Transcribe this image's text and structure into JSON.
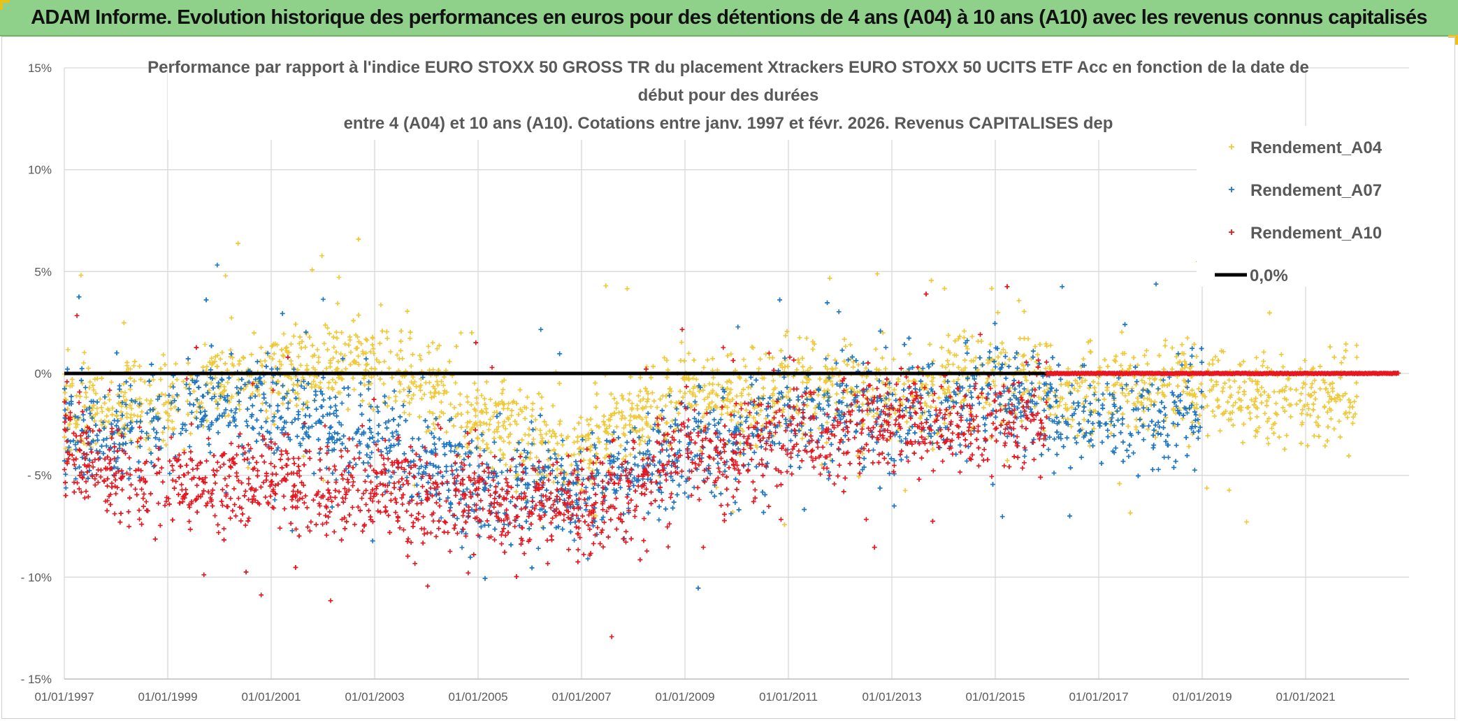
{
  "header": {
    "banner": "ADAM Informe. Evolution historique des performances en euros pour des détentions de 4 ans (A04) à 10 ans (A10) avec les revenus connus capitalisés"
  },
  "chart_data": {
    "type": "scatter",
    "title_lines": [
      "Performance par rapport à l'indice EURO STOXX 50 GROSS TR  du placement Xtrackers EURO STOXX 50 UCITS ETF Acc en fonction de la date de",
      "début pour des durées",
      "entre 4 (A04) et 10 ans (A10). Cotations entre janv. 1997 et févr. 2026. Revenus CAPITALISES dep"
    ],
    "ylim": [
      -15,
      15
    ],
    "y_ticks": [
      {
        "value": 15,
        "label": "15%"
      },
      {
        "value": 10,
        "label": "10%"
      },
      {
        "value": 5,
        "label": "5%"
      },
      {
        "value": 0,
        "label": "0%"
      },
      {
        "value": -5,
        "label": "- 5%"
      },
      {
        "value": -10,
        "label": "- 10%"
      },
      {
        "value": -15,
        "label": "- 15%"
      }
    ],
    "xlim": [
      1997.0,
      2023.0
    ],
    "x_ticks": [
      {
        "value": 1997,
        "label": "01/01/1997"
      },
      {
        "value": 1999,
        "label": "01/01/1999"
      },
      {
        "value": 2001,
        "label": "01/01/2001"
      },
      {
        "value": 2003,
        "label": "01/01/2003"
      },
      {
        "value": 2005,
        "label": "01/01/2005"
      },
      {
        "value": 2007,
        "label": "01/01/2007"
      },
      {
        "value": 2009,
        "label": "01/01/2009"
      },
      {
        "value": 2011,
        "label": "01/01/2011"
      },
      {
        "value": 2013,
        "label": "01/01/2013"
      },
      {
        "value": 2015,
        "label": "01/01/2015"
      },
      {
        "value": 2017,
        "label": "01/01/2017"
      },
      {
        "value": 2019,
        "label": "01/01/2019"
      },
      {
        "value": 2021,
        "label": "01/01/2021"
      }
    ],
    "grid": true,
    "legend": {
      "placement": "top-right",
      "entries": [
        {
          "name": "Rendement_A04",
          "color": "#f0c93a",
          "marker": "+"
        },
        {
          "name": "Rendement_A07",
          "color": "#1f77c4",
          "marker": "+"
        },
        {
          "name": "Rendement_A10",
          "color": "#e8161e",
          "marker": "+"
        },
        {
          "name": "0,0%",
          "color": "#000000",
          "marker": "line"
        }
      ]
    },
    "reference_line": {
      "name": "0,0%",
      "value": 0,
      "color": "#000000"
    },
    "series": [
      {
        "name": "Rendement_A04",
        "color": "#f0c93a",
        "x_range": [
          1997.0,
          2022.0
        ],
        "trend": [
          [
            1997.0,
            -2.0
          ],
          [
            1998.0,
            -1.5
          ],
          [
            1999.0,
            -1.5
          ],
          [
            2000.0,
            -0.5
          ],
          [
            2001.0,
            0.0
          ],
          [
            2002.0,
            0.5
          ],
          [
            2003.0,
            0.5
          ],
          [
            2004.0,
            -0.5
          ],
          [
            2005.0,
            -2.5
          ],
          [
            2006.0,
            -3.0
          ],
          [
            2007.0,
            -4.0
          ],
          [
            2008.0,
            -2.0
          ],
          [
            2009.0,
            -1.0
          ],
          [
            2010.0,
            -1.5
          ],
          [
            2011.0,
            -0.5
          ],
          [
            2012.0,
            -0.5
          ],
          [
            2013.0,
            -1.0
          ],
          [
            2014.0,
            -0.5
          ],
          [
            2015.0,
            -0.2
          ],
          [
            2016.0,
            -0.5
          ],
          [
            2017.0,
            -1.0
          ],
          [
            2018.0,
            -1.0
          ],
          [
            2019.0,
            -0.5
          ],
          [
            2020.0,
            -1.0
          ],
          [
            2021.0,
            -1.5
          ],
          [
            2022.0,
            -1.0
          ]
        ],
        "spread": 1.4
      },
      {
        "name": "Rendement_A07",
        "color": "#1f77c4",
        "x_range": [
          1997.0,
          2019.0
        ],
        "trend": [
          [
            1997.0,
            -3.0
          ],
          [
            1998.0,
            -3.0
          ],
          [
            1999.0,
            -2.0
          ],
          [
            2000.0,
            -1.5
          ],
          [
            2001.0,
            -1.5
          ],
          [
            2002.0,
            -2.5
          ],
          [
            2003.0,
            -3.0
          ],
          [
            2004.0,
            -4.5
          ],
          [
            2005.0,
            -5.5
          ],
          [
            2006.0,
            -5.5
          ],
          [
            2007.0,
            -5.5
          ],
          [
            2008.0,
            -5.0
          ],
          [
            2009.0,
            -3.5
          ],
          [
            2010.0,
            -3.0
          ],
          [
            2011.0,
            -2.0
          ],
          [
            2012.0,
            -1.5
          ],
          [
            2013.0,
            -2.5
          ],
          [
            2014.0,
            -1.5
          ],
          [
            2015.0,
            -1.0
          ],
          [
            2016.0,
            -2.0
          ],
          [
            2017.0,
            -1.5
          ],
          [
            2018.0,
            -2.5
          ],
          [
            2019.0,
            -1.5
          ]
        ],
        "spread": 1.6
      },
      {
        "name": "Rendement_A10",
        "color": "#e8161e",
        "x_range": [
          1997.0,
          2016.0
        ],
        "trend": [
          [
            1997.0,
            -3.5
          ],
          [
            1998.0,
            -5.0
          ],
          [
            1999.0,
            -5.5
          ],
          [
            2000.0,
            -5.5
          ],
          [
            2001.0,
            -5.0
          ],
          [
            2002.0,
            -6.0
          ],
          [
            2003.0,
            -5.5
          ],
          [
            2004.0,
            -6.0
          ],
          [
            2005.0,
            -6.0
          ],
          [
            2006.0,
            -6.5
          ],
          [
            2007.0,
            -6.5
          ],
          [
            2008.0,
            -5.5
          ],
          [
            2009.0,
            -3.5
          ],
          [
            2010.0,
            -4.0
          ],
          [
            2011.0,
            -3.0
          ],
          [
            2012.0,
            -3.0
          ],
          [
            2013.0,
            -2.5
          ],
          [
            2014.0,
            -2.0
          ],
          [
            2015.0,
            -2.5
          ],
          [
            2016.0,
            -2.0
          ]
        ],
        "spread": 1.5,
        "flat_zero_after": [
          2016.0,
          2022.8
        ]
      }
    ]
  }
}
